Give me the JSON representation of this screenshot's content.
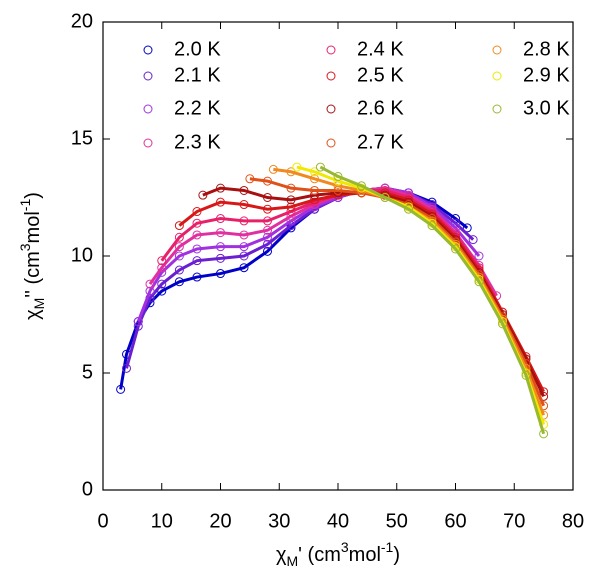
{
  "chart_data": {
    "type": "scatter",
    "xlabel_parts": [
      "χ",
      "M",
      "' (cm",
      "3",
      "mol",
      "-1",
      ")"
    ],
    "ylabel_parts": [
      "χ",
      "M",
      "'' (cm",
      "3",
      "mol",
      "-1",
      ")"
    ],
    "xlim": [
      0,
      80
    ],
    "xticks": [
      0,
      10,
      20,
      30,
      40,
      50,
      60,
      70,
      80
    ],
    "ylim": [
      0,
      20
    ],
    "yticks": [
      0,
      5,
      10,
      15,
      20
    ],
    "series": [
      {
        "name": "2.0 K",
        "color": "#0000c8",
        "x": [
          3,
          4,
          6,
          8,
          10,
          13,
          16,
          20,
          24,
          28,
          32,
          36,
          40,
          44,
          48,
          52,
          56,
          60,
          62
        ],
        "values": [
          4.3,
          5.8,
          7.2,
          8.0,
          8.5,
          8.9,
          9.1,
          9.25,
          9.5,
          10.2,
          11.2,
          12.0,
          12.5,
          12.8,
          12.9,
          12.7,
          12.3,
          11.6,
          11.2
        ]
      },
      {
        "name": "2.1 K",
        "color": "#6a1fd0",
        "x": [
          4,
          6,
          8,
          10,
          13,
          16,
          20,
          24,
          28,
          32,
          36,
          40,
          44,
          48,
          52,
          56,
          60,
          63
        ],
        "values": [
          5.2,
          7.0,
          8.2,
          8.8,
          9.4,
          9.8,
          9.9,
          10.0,
          10.5,
          11.3,
          12.0,
          12.5,
          12.8,
          12.9,
          12.7,
          12.2,
          11.4,
          10.7
        ]
      },
      {
        "name": "2.2 K",
        "color": "#a030e0",
        "x": [
          6,
          8,
          10,
          13,
          16,
          20,
          24,
          28,
          32,
          36,
          40,
          44,
          48,
          52,
          56,
          60,
          64
        ],
        "values": [
          7.2,
          8.5,
          9.3,
          10.0,
          10.3,
          10.4,
          10.4,
          10.8,
          11.5,
          12.1,
          12.5,
          12.8,
          12.9,
          12.7,
          12.1,
          11.2,
          10.0
        ]
      },
      {
        "name": "2.3 K",
        "color": "#e030a0",
        "x": [
          8,
          10,
          13,
          16,
          20,
          24,
          28,
          32,
          36,
          40,
          44,
          48,
          52,
          56,
          60,
          64,
          67
        ],
        "values": [
          8.8,
          9.5,
          10.4,
          10.9,
          11.0,
          10.9,
          11.1,
          11.7,
          12.2,
          12.6,
          12.8,
          12.9,
          12.6,
          12.0,
          11.0,
          9.6,
          8.3
        ]
      },
      {
        "name": "2.4 K",
        "color": "#e8206a",
        "x": [
          10,
          13,
          16,
          20,
          24,
          28,
          32,
          36,
          40,
          44,
          48,
          52,
          56,
          60,
          64,
          68
        ],
        "values": [
          9.8,
          10.8,
          11.4,
          11.6,
          11.5,
          11.5,
          11.9,
          12.3,
          12.6,
          12.8,
          12.8,
          12.5,
          11.9,
          10.9,
          9.5,
          7.6
        ]
      },
      {
        "name": "2.5 K",
        "color": "#d81818",
        "x": [
          13,
          16,
          20,
          24,
          28,
          32,
          36,
          40,
          44,
          48,
          52,
          56,
          60,
          64,
          68,
          72,
          75
        ],
        "values": [
          11.3,
          11.9,
          12.3,
          12.2,
          12.0,
          12.1,
          12.4,
          12.6,
          12.7,
          12.7,
          12.4,
          11.8,
          10.8,
          9.4,
          7.6,
          5.7,
          4.2
        ]
      },
      {
        "name": "2.6 K",
        "color": "#a81010",
        "x": [
          17,
          20,
          24,
          28,
          32,
          36,
          40,
          44,
          48,
          52,
          56,
          60,
          64,
          68,
          72,
          75
        ],
        "values": [
          12.6,
          12.9,
          12.8,
          12.5,
          12.4,
          12.6,
          12.7,
          12.7,
          12.6,
          12.3,
          11.7,
          10.7,
          9.3,
          7.5,
          5.6,
          4.0
        ]
      },
      {
        "name": "2.7 K",
        "color": "#e05018",
        "x": [
          25,
          28,
          32,
          36,
          40,
          44,
          48,
          52,
          56,
          60,
          64,
          68,
          72,
          75
        ],
        "values": [
          13.3,
          13.2,
          12.9,
          12.8,
          12.8,
          12.7,
          12.5,
          12.2,
          11.6,
          10.6,
          9.2,
          7.4,
          5.4,
          3.6
        ]
      },
      {
        "name": "2.8 K",
        "color": "#f08a20",
        "x": [
          29,
          32,
          36,
          40,
          44,
          48,
          52,
          56,
          60,
          64,
          68,
          72,
          75
        ],
        "values": [
          13.7,
          13.6,
          13.3,
          13.0,
          12.8,
          12.5,
          12.1,
          11.5,
          10.5,
          9.1,
          7.3,
          5.2,
          3.2
        ]
      },
      {
        "name": "2.9 K",
        "color": "#f0e800",
        "x": [
          33,
          36,
          40,
          44,
          48,
          52,
          56,
          60,
          64,
          68,
          72,
          75
        ],
        "values": [
          13.8,
          13.6,
          13.2,
          12.9,
          12.5,
          12.1,
          11.4,
          10.4,
          9.0,
          7.2,
          5.0,
          2.8
        ]
      },
      {
        "name": "3.0 K",
        "color": "#98b830",
        "x": [
          37,
          40,
          44,
          48,
          52,
          56,
          60,
          64,
          68,
          72,
          75
        ],
        "values": [
          13.8,
          13.4,
          13.0,
          12.5,
          12.0,
          11.3,
          10.3,
          8.9,
          7.1,
          4.9,
          2.4
        ]
      }
    ]
  }
}
